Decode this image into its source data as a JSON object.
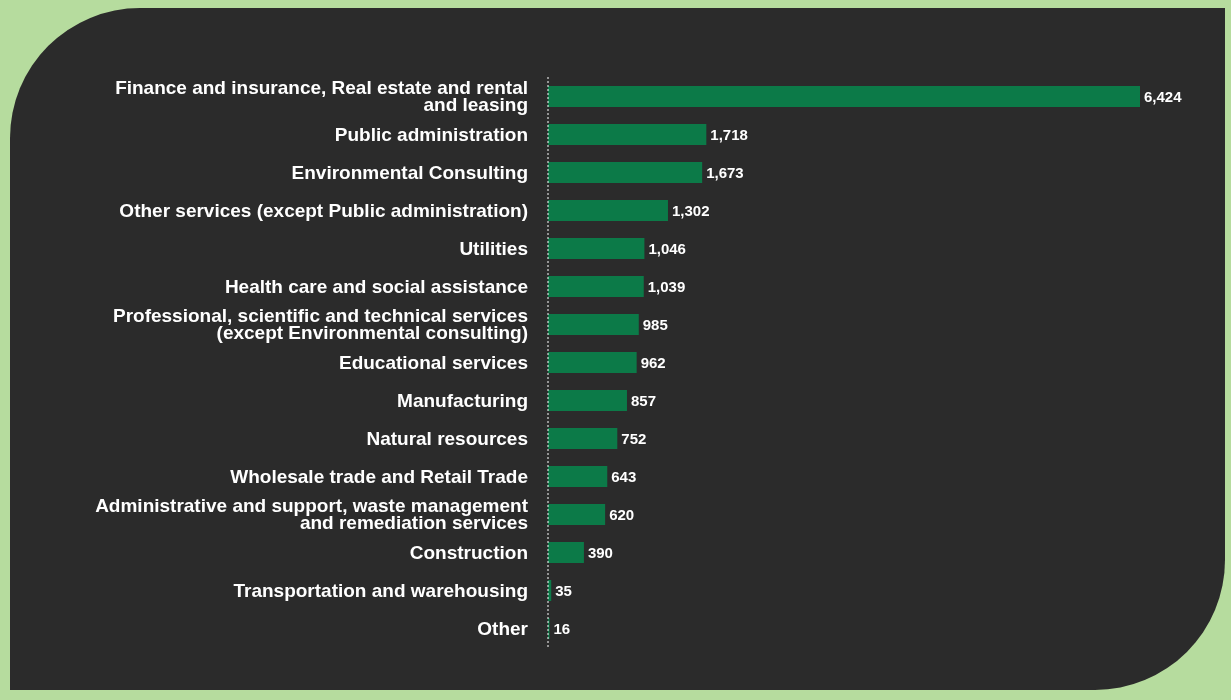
{
  "chart_data": {
    "type": "bar",
    "orientation": "horizontal",
    "categories": [
      "Finance and insurance, Real estate and rental and leasing",
      "Public administration",
      "Environmental Consulting",
      "Other services (except Public administration)",
      "Utilities",
      "Health care and social assistance",
      "Professional, scientific and technical services (except Environmental consulting)",
      "Educational services",
      "Manufacturing",
      "Natural resources",
      "Wholesale trade and Retail Trade",
      "Administrative and support, waste management and remediation services",
      "Construction",
      "Transportation and warehousing",
      "Other"
    ],
    "values": [
      6424,
      1718,
      1673,
      1302,
      1046,
      1039,
      985,
      962,
      857,
      752,
      643,
      620,
      390,
      35,
      16
    ],
    "value_labels": [
      "6,424",
      "1,718",
      "1,673",
      "1,302",
      "1,046",
      "1,039",
      "985",
      "962",
      "857",
      "752",
      "643",
      "620",
      "390",
      "35",
      "16"
    ],
    "color": "#0c7a48",
    "grid": false,
    "legend": false
  }
}
